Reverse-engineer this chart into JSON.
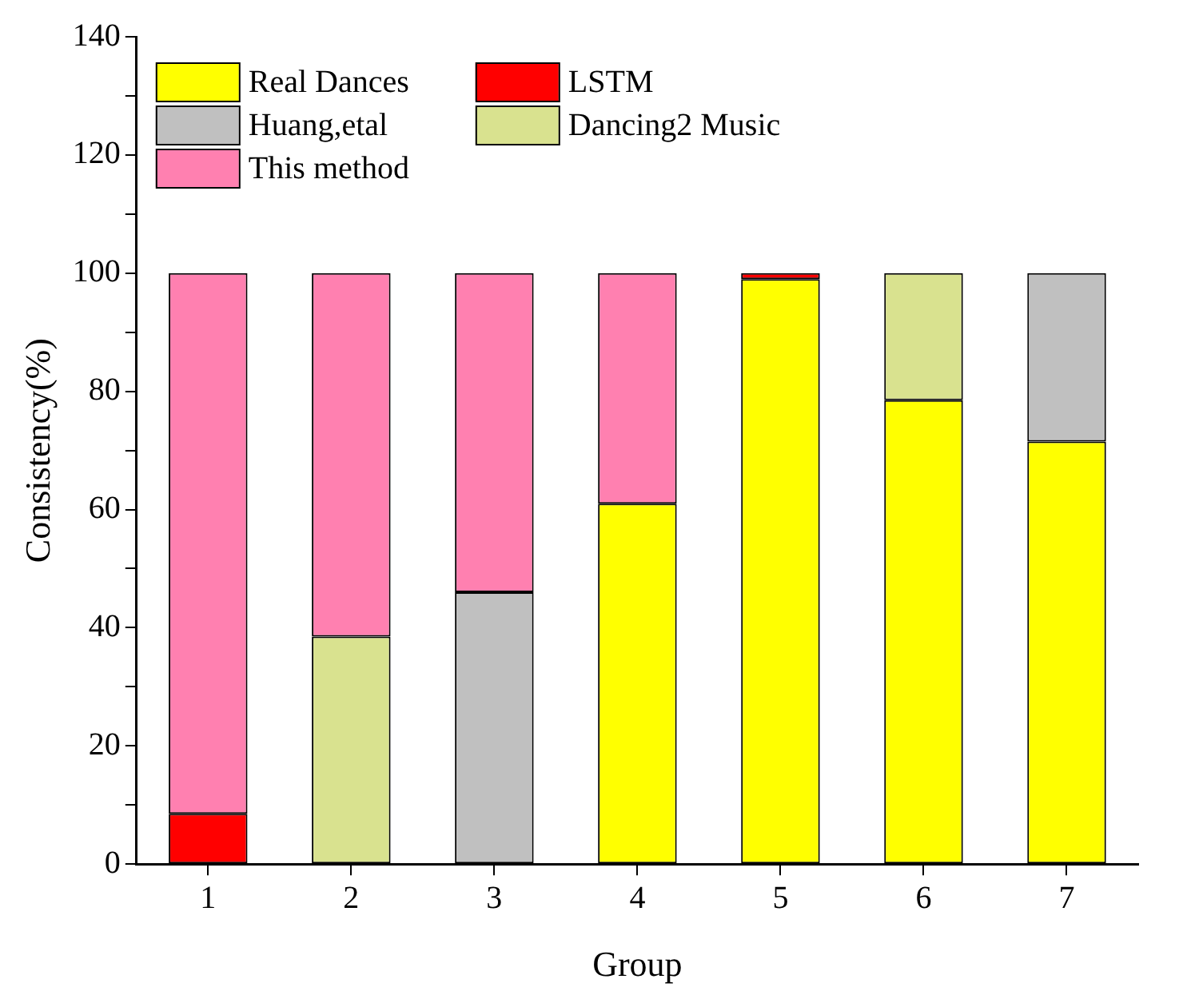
{
  "chart_data": {
    "type": "bar",
    "stacked": true,
    "xlabel": "Group",
    "ylabel": "Consistency(%)",
    "categories": [
      "1",
      "2",
      "3",
      "4",
      "5",
      "6",
      "7"
    ],
    "series": [
      {
        "name": "Real Dances",
        "color": "#ffff00",
        "values": [
          0,
          0,
          0,
          61,
          99,
          78.5,
          71.5
        ]
      },
      {
        "name": "LSTM",
        "color": "#ff0000",
        "values": [
          8.5,
          0,
          0,
          0,
          1,
          0,
          0
        ]
      },
      {
        "name": "Huang,etal",
        "color": "#c0c0c0",
        "values": [
          0,
          0,
          46,
          0,
          0,
          0,
          28.5
        ]
      },
      {
        "name": "Dancing2 Music",
        "color": "#d9e28f",
        "values": [
          0,
          38.5,
          0,
          0,
          0,
          21.5,
          0
        ]
      },
      {
        "name": "This method",
        "color": "#ff80b0",
        "values": [
          91.5,
          61.5,
          54,
          39,
          0,
          0,
          0
        ]
      }
    ],
    "ylim": [
      0,
      140
    ],
    "yticks": [
      0,
      {
        "value": 10,
        "label": null
      },
      20,
      {
        "value": 30,
        "label": null
      },
      40,
      {
        "value": 50,
        "label": null
      },
      60,
      {
        "value": 70,
        "label": null
      },
      80,
      {
        "value": 90,
        "label": null
      },
      100,
      {
        "value": 110,
        "label": null
      },
      120,
      {
        "value": 130,
        "label": null
      },
      140
    ],
    "grid": false,
    "legend": "top left"
  }
}
